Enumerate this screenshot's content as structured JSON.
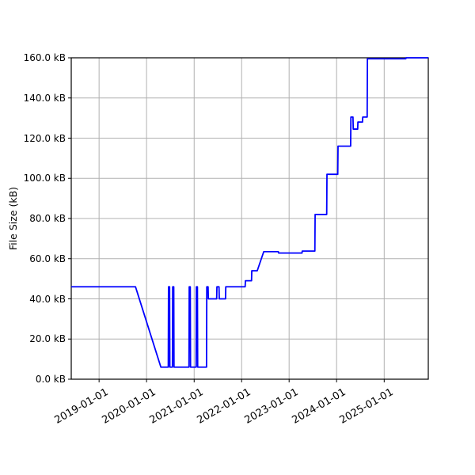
{
  "chart_data": {
    "type": "line",
    "ylabel": "File Size (kB)",
    "grid": true,
    "legend": null,
    "ylim": [
      0,
      160
    ],
    "xlim": [
      "2018-06-01",
      "2025-12-06"
    ],
    "colors": {
      "line": "#0000ff",
      "grid": "#b0b0b0",
      "axis": "#000000",
      "background": "#ffffff",
      "tick_text": "#000000"
    },
    "x_ticks": [
      {
        "date": "2019-01-01",
        "label": "2019-01-01"
      },
      {
        "date": "2020-01-01",
        "label": "2020-01-01"
      },
      {
        "date": "2021-01-01",
        "label": "2021-01-01"
      },
      {
        "date": "2022-01-01",
        "label": "2022-01-01"
      },
      {
        "date": "2023-01-01",
        "label": "2023-01-01"
      },
      {
        "date": "2024-01-01",
        "label": "2024-01-01"
      },
      {
        "date": "2025-01-01",
        "label": "2025-01-01"
      }
    ],
    "y_ticks": [
      {
        "value": 0,
        "label": "0.0 kB"
      },
      {
        "value": 20,
        "label": "20.0 kB"
      },
      {
        "value": 40,
        "label": "40.0 kB"
      },
      {
        "value": 60,
        "label": "60.0 kB"
      },
      {
        "value": 80,
        "label": "80.0 kB"
      },
      {
        "value": 100,
        "label": "100.0 kB"
      },
      {
        "value": 120,
        "label": "120.0 kB"
      },
      {
        "value": 140,
        "label": "140.0 kB"
      },
      {
        "value": 160,
        "label": "160.0 kB"
      }
    ],
    "series": [
      {
        "name": "file-size",
        "color": "#0000ff",
        "points": [
          [
            "2018-06-01",
            46
          ],
          [
            "2019-10-08",
            46
          ],
          [
            "2020-04-20",
            6
          ],
          [
            "2020-06-16",
            6
          ],
          [
            "2020-06-18",
            46
          ],
          [
            "2020-06-26",
            46
          ],
          [
            "2020-06-28",
            6
          ],
          [
            "2020-07-18",
            6
          ],
          [
            "2020-07-20",
            46
          ],
          [
            "2020-07-28",
            46
          ],
          [
            "2020-07-30",
            6
          ],
          [
            "2020-11-22",
            6
          ],
          [
            "2020-11-24",
            46
          ],
          [
            "2020-12-02",
            46
          ],
          [
            "2020-12-04",
            6
          ],
          [
            "2021-01-16",
            6
          ],
          [
            "2021-01-18",
            46
          ],
          [
            "2021-01-26",
            46
          ],
          [
            "2021-01-28",
            6
          ],
          [
            "2021-04-06",
            6
          ],
          [
            "2021-04-08",
            46
          ],
          [
            "2021-04-18",
            46
          ],
          [
            "2021-04-20",
            40
          ],
          [
            "2021-06-23",
            40
          ],
          [
            "2021-06-25",
            46
          ],
          [
            "2021-07-11",
            46
          ],
          [
            "2021-07-13",
            40
          ],
          [
            "2021-08-30",
            40
          ],
          [
            "2021-09-01",
            46
          ],
          [
            "2022-01-28",
            46
          ],
          [
            "2022-01-30",
            49
          ],
          [
            "2022-03-18",
            49
          ],
          [
            "2022-03-20",
            54
          ],
          [
            "2022-05-01",
            54
          ],
          [
            "2022-06-20",
            63.5
          ],
          [
            "2022-10-10",
            63.5
          ],
          [
            "2022-10-12",
            62.8
          ],
          [
            "2023-04-10",
            62.8
          ],
          [
            "2023-04-12",
            63.8
          ],
          [
            "2023-07-18",
            63.8
          ],
          [
            "2023-07-20",
            82
          ],
          [
            "2023-10-17",
            82
          ],
          [
            "2023-10-19",
            102
          ],
          [
            "2024-01-10",
            102
          ],
          [
            "2024-01-12",
            116
          ],
          [
            "2024-04-18",
            116
          ],
          [
            "2024-04-20",
            130.5
          ],
          [
            "2024-05-06",
            130.5
          ],
          [
            "2024-05-08",
            124.5
          ],
          [
            "2024-06-11",
            124.5
          ],
          [
            "2024-06-13",
            128
          ],
          [
            "2024-07-18",
            128
          ],
          [
            "2024-07-20",
            130.5
          ],
          [
            "2024-08-23",
            130.5
          ],
          [
            "2024-08-25",
            159.5
          ],
          [
            "2025-06-16",
            159.5
          ],
          [
            "2025-06-18",
            160
          ],
          [
            "2025-12-06",
            160
          ]
        ]
      }
    ]
  }
}
